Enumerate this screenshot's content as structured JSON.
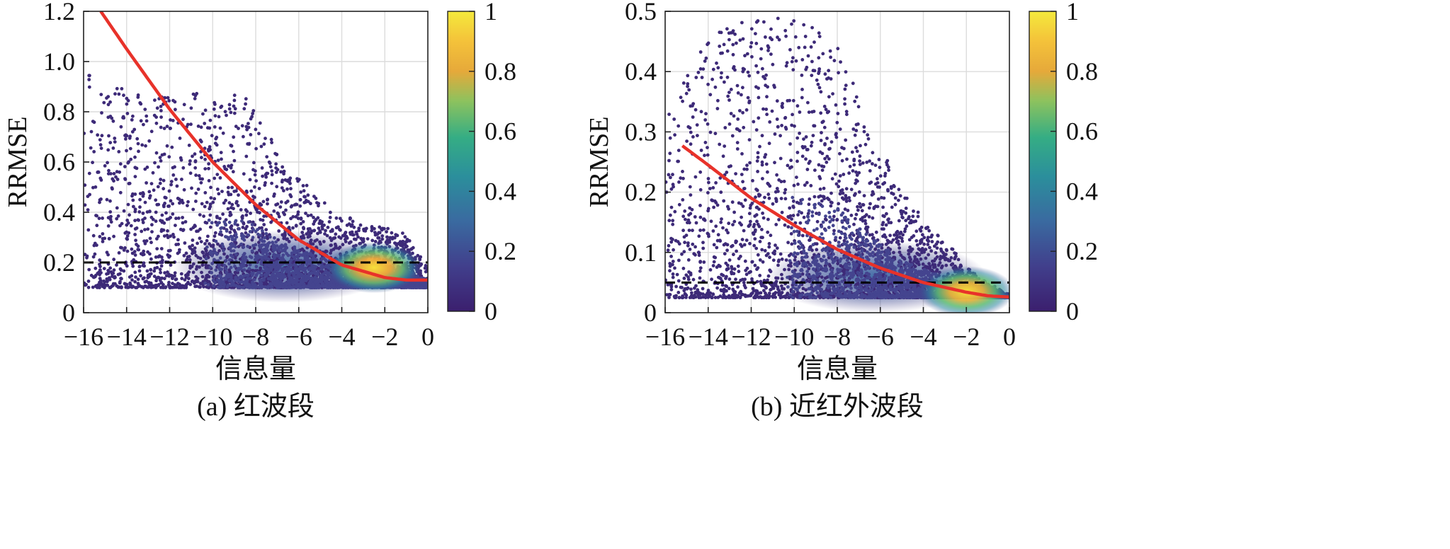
{
  "chart_data": [
    {
      "type": "scatter",
      "panel_caption": "(a) 红波段",
      "xlabel": "信息量",
      "ylabel": "RRMSE",
      "xlim": [
        -16,
        0
      ],
      "ylim": [
        0,
        1.2
      ],
      "x_ticks": [
        "−16",
        "−14",
        "−12",
        "−10",
        "−8",
        "−6",
        "−4",
        "−2",
        "0"
      ],
      "y_ticks": [
        "0",
        "0.2",
        "0.4",
        "0.6",
        "0.8",
        "1.0",
        "1.2"
      ],
      "grid": true,
      "color_encoding": "point density (normalized)",
      "colorbar": {
        "min": 0,
        "max": 1,
        "ticks": [
          "0",
          "0.2",
          "0.4",
          "0.6",
          "0.8",
          "1"
        ]
      },
      "density_peak": {
        "x": -2.5,
        "y": 0.18
      },
      "y_floor": 0.1,
      "upper_envelope": [
        [
          -15.8,
          0.95
        ],
        [
          -13,
          0.85
        ],
        [
          -11,
          0.88
        ],
        [
          -8.5,
          0.87
        ],
        [
          -7,
          0.65
        ],
        [
          -5,
          0.45
        ],
        [
          -3,
          0.35
        ],
        [
          -1.2,
          0.33
        ],
        [
          0,
          0.18
        ]
      ],
      "fit_curve": [
        [
          -15.2,
          1.2
        ],
        [
          -14,
          1.05
        ],
        [
          -12,
          0.81
        ],
        [
          -10,
          0.6
        ],
        [
          -8,
          0.43
        ],
        [
          -6,
          0.29
        ],
        [
          -4,
          0.19
        ],
        [
          -2,
          0.14
        ],
        [
          -1,
          0.13
        ],
        [
          0,
          0.13
        ]
      ],
      "fit_curve_color": "#e8322a",
      "threshold_line": {
        "y": 0.2,
        "style": "dashed",
        "color": "#000000"
      }
    },
    {
      "type": "scatter",
      "panel_caption": "(b) 近红外波段",
      "xlabel": "信息量",
      "ylabel": "RRMSE",
      "xlim": [
        -16,
        0
      ],
      "ylim": [
        0,
        0.5
      ],
      "x_ticks": [
        "−16",
        "−14",
        "−12",
        "−10",
        "−8",
        "−6",
        "−4",
        "−2",
        "0"
      ],
      "y_ticks": [
        "0",
        "0.1",
        "0.2",
        "0.3",
        "0.4",
        "0.5"
      ],
      "grid": true,
      "color_encoding": "point density (normalized)",
      "colorbar": {
        "min": 0,
        "max": 1,
        "ticks": [
          "0",
          "0.2",
          "0.4",
          "0.6",
          "0.8",
          "1"
        ]
      },
      "density_peak": {
        "x": -2.0,
        "y": 0.035
      },
      "y_floor": 0.025,
      "upper_envelope": [
        [
          -15.8,
          0.35
        ],
        [
          -14,
          0.46
        ],
        [
          -12,
          0.49
        ],
        [
          -10,
          0.5
        ],
        [
          -8,
          0.45
        ],
        [
          -6.5,
          0.32
        ],
        [
          -5,
          0.2
        ],
        [
          -3,
          0.12
        ],
        [
          -1.5,
          0.06
        ],
        [
          0,
          0.03
        ]
      ],
      "fit_curve": [
        [
          -15.2,
          0.277
        ],
        [
          -14,
          0.245
        ],
        [
          -12,
          0.19
        ],
        [
          -10,
          0.145
        ],
        [
          -8,
          0.105
        ],
        [
          -6,
          0.074
        ],
        [
          -4,
          0.05
        ],
        [
          -2,
          0.034
        ],
        [
          -1,
          0.028
        ],
        [
          0,
          0.026
        ]
      ],
      "fit_curve_color": "#e8322a",
      "threshold_line": {
        "y": 0.05,
        "style": "dashed",
        "color": "#000000"
      }
    }
  ]
}
